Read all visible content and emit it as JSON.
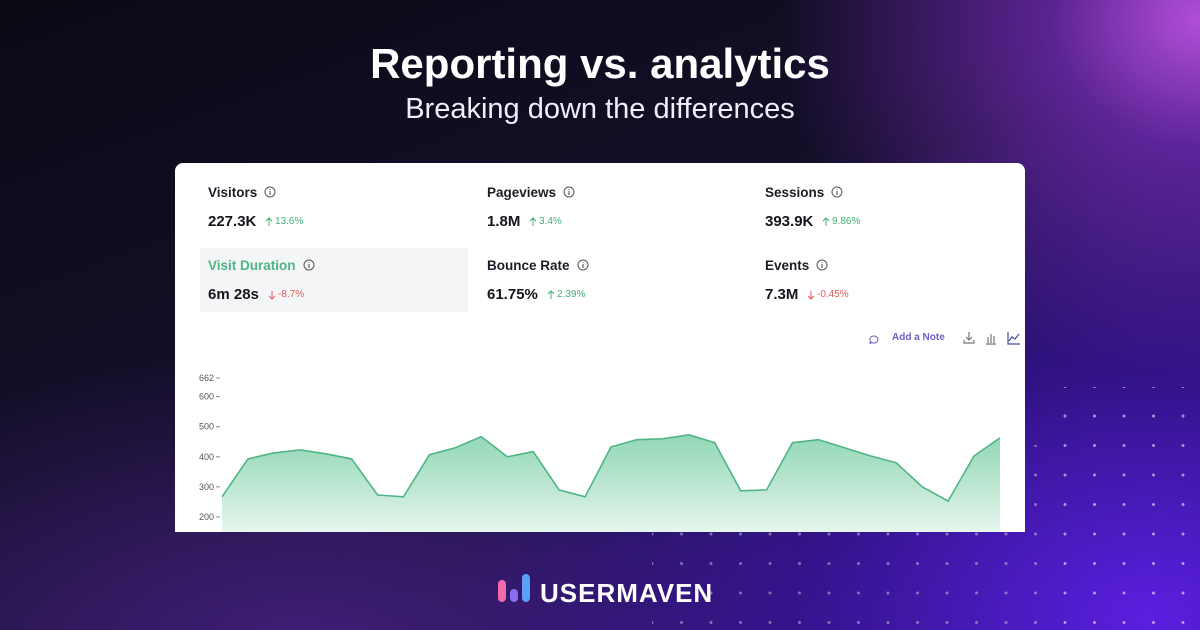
{
  "header": {
    "title": "Reporting vs. analytics",
    "subtitle": "Breaking down the differences"
  },
  "metrics": [
    {
      "label": "Visitors",
      "value": "227.3K",
      "change": "13.6%",
      "direction": "up",
      "active": false
    },
    {
      "label": "Pageviews",
      "value": "1.8M",
      "change": "3.4%",
      "direction": "up",
      "active": false
    },
    {
      "label": "Sessions",
      "value": "393.9K",
      "change": "9.86%",
      "direction": "up",
      "active": false
    },
    {
      "label": "Visit Duration",
      "value": "6m 28s",
      "change": "-8.7%",
      "direction": "down",
      "active": true
    },
    {
      "label": "Bounce Rate",
      "value": "61.75%",
      "change": "2.39%",
      "direction": "up",
      "active": false
    },
    {
      "label": "Events",
      "value": "7.3M",
      "change": "-0.45%",
      "direction": "down",
      "active": false
    }
  ],
  "toolbar": {
    "note_button": "Add a Note"
  },
  "chart_data": {
    "type": "area",
    "color": "#4fb585",
    "values": [
      267,
      393,
      413,
      423,
      410,
      393,
      273,
      267,
      407,
      430,
      467,
      400,
      417,
      290,
      267,
      433,
      457,
      460,
      473,
      447,
      287,
      290,
      447,
      457,
      430,
      403,
      380,
      300,
      253,
      403,
      463
    ],
    "ylim": [
      150,
      662
    ],
    "yticks": [
      200,
      300,
      400,
      500,
      600,
      662
    ]
  },
  "logo": {
    "text": "USERMAVEN"
  }
}
